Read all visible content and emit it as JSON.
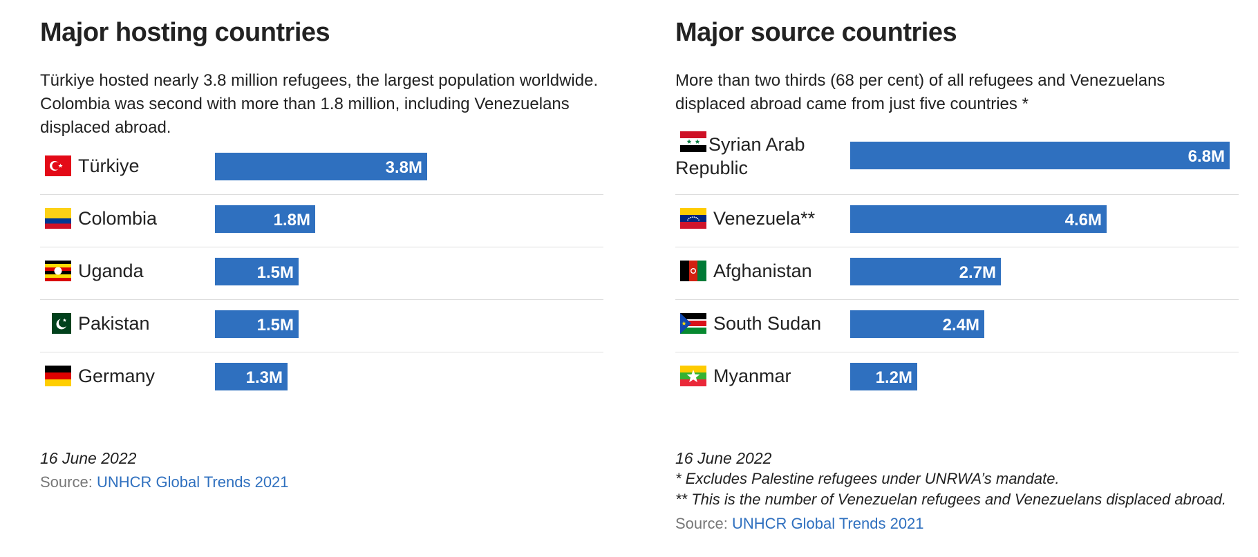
{
  "colors": {
    "bar": "#2f70bf",
    "divider": "#dddddd",
    "link": "#2f70bf",
    "muted": "#777777"
  },
  "chart_data": [
    {
      "type": "bar",
      "orientation": "horizontal",
      "title": "Major hosting countries",
      "description": "Türkiye hosted nearly 3.8 million refugees, the largest population worldwide. Colombia was second with more than 1.8 million, including Venezuelans displaced abroad.",
      "categories": [
        "Türkiye",
        "Colombia",
        "Uganda",
        "Pakistan",
        "Germany"
      ],
      "values": [
        3.8,
        1.8,
        1.5,
        1.5,
        1.3
      ],
      "value_labels": [
        "3.8M",
        "1.8M",
        "1.5M",
        "1.5M",
        "1.3M"
      ],
      "flags": [
        "turkey-flag-icon",
        "colombia-flag-icon",
        "uganda-flag-icon",
        "pakistan-flag-icon",
        "germany-flag-icon"
      ],
      "xlim": [
        0,
        7.27
      ],
      "grid": false,
      "footer": {
        "date": "16 June 2022",
        "notes": [],
        "source_label": "Source:",
        "source_link": "UNHCR Global Trends 2021"
      }
    },
    {
      "type": "bar",
      "orientation": "horizontal",
      "title": "Major source countries",
      "description": "More than two thirds (68 per cent) of all refugees and Venezuelans displaced abroad came from just five countries *",
      "categories": [
        "Syrian Arab Republic",
        "Venezuela**",
        "Afghanistan",
        "South Sudan",
        "Myanmar"
      ],
      "values": [
        6.8,
        4.6,
        2.7,
        2.4,
        1.2
      ],
      "value_labels": [
        "6.8M",
        "4.6M",
        "2.7M",
        "2.4M",
        "1.2M"
      ],
      "flags": [
        "syria-flag-icon",
        "venezuela-flag-icon",
        "afghanistan-flag-icon",
        "south-sudan-flag-icon",
        "myanmar-flag-icon"
      ],
      "xlim": [
        0,
        7.27
      ],
      "grid": false,
      "footer": {
        "date": "16 June 2022",
        "notes": [
          "* Excludes Palestine refugees under UNRWA’s mandate.",
          "** This is the number of Venezuelan refugees and Venezuelans displaced abroad."
        ],
        "source_label": "Source:",
        "source_link": "UNHCR Global Trends 2021"
      }
    }
  ]
}
